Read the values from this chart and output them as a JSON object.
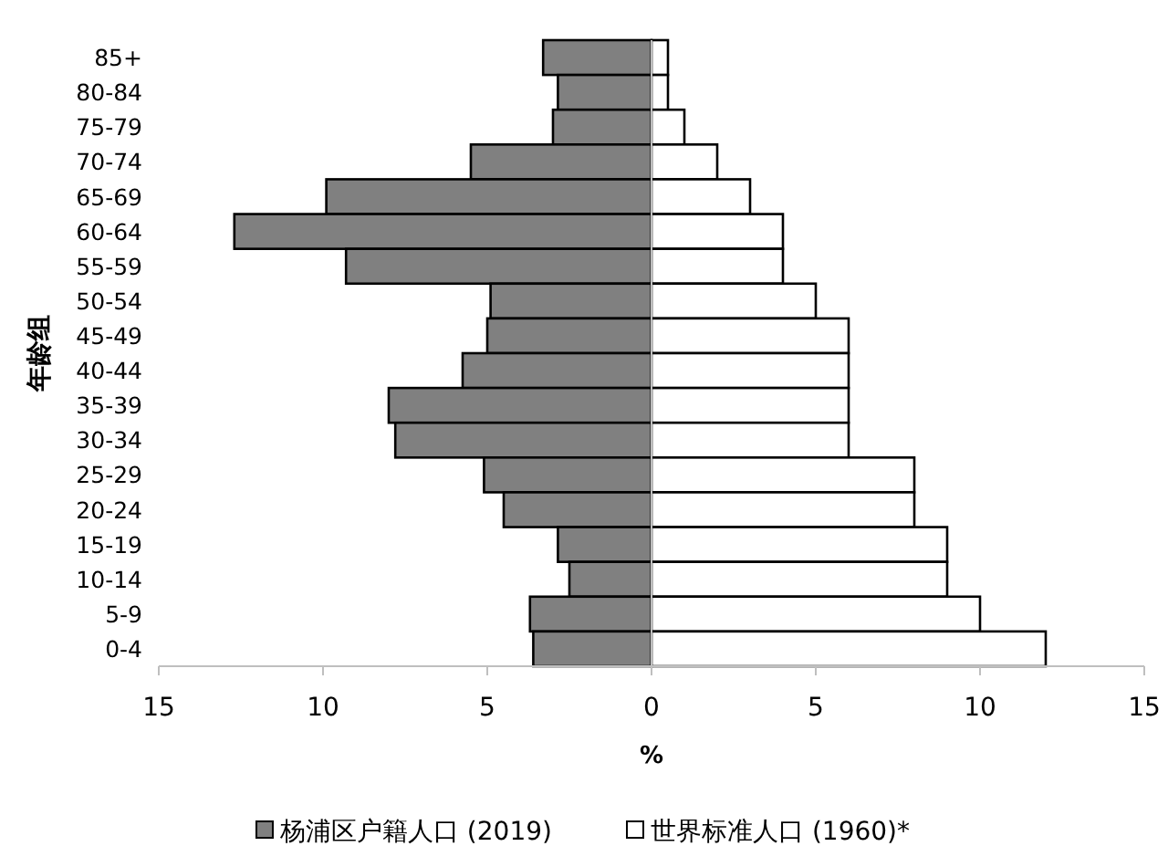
{
  "chart_data": {
    "type": "bar",
    "orientation": "horizontal",
    "stacked": true,
    "xlabel": "%",
    "ylabel": "年龄组",
    "categories": [
      "85+",
      "80-84",
      "75-79",
      "70-74",
      "65-69",
      "60-64",
      "55-59",
      "50-54",
      "45-49",
      "40-44",
      "35-39",
      "30-34",
      "25-29",
      "20-24",
      "15-19",
      "10-14",
      "5-9",
      "0-4"
    ],
    "series": [
      {
        "name": "杨浦区户籍人口 (2019)",
        "color": "#808080",
        "values": [
          -3.3,
          -2.85,
          -3.0,
          -5.5,
          -9.9,
          -12.7,
          -9.3,
          -4.9,
          -5.0,
          -5.75,
          -8.0,
          -7.8,
          -5.1,
          -4.5,
          -2.85,
          -2.5,
          -3.7,
          -3.6
        ]
      },
      {
        "name": "世界标准人口 (1960)*",
        "color": "#ffffff",
        "values": [
          0.5,
          0.5,
          1,
          2,
          3,
          4,
          4,
          5,
          6,
          6,
          6,
          6,
          8,
          8,
          9,
          9,
          10,
          12
        ]
      }
    ],
    "xlim": [
      -15,
      15
    ],
    "xticks": [
      {
        "value": -15,
        "label": "15"
      },
      {
        "value": -10,
        "label": "10"
      },
      {
        "value": -5,
        "label": "5"
      },
      0,
      5,
      10,
      15
    ],
    "legend": "bottom"
  }
}
